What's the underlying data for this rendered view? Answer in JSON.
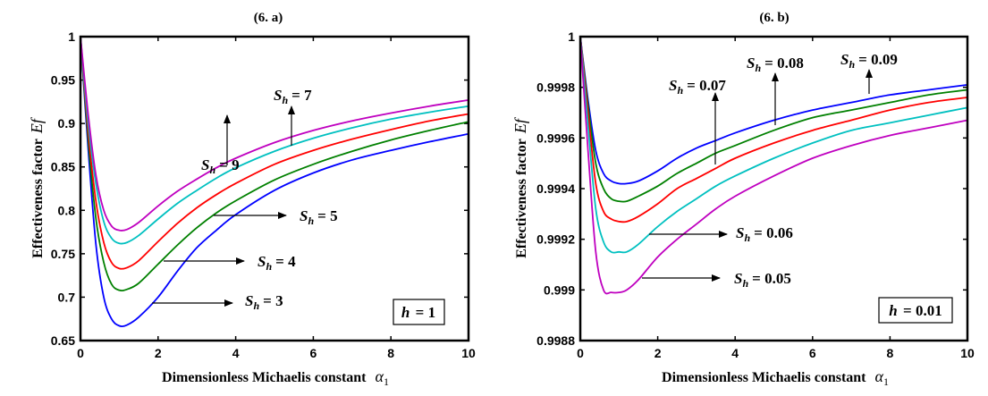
{
  "chart_data": [
    {
      "type": "line",
      "title": "(6. a)",
      "xlabel": "Dimensionless Michaelis constant",
      "xlabel_symbol": "α",
      "xlabel_symbol_sub": "1",
      "ylabel": "Effectiveness factor",
      "ylabel_symbol": "Ef",
      "xlim": [
        0,
        10
      ],
      "ylim": [
        0.65,
        1
      ],
      "xticks": [
        0,
        2,
        4,
        6,
        8,
        10
      ],
      "xtick_labels": [
        "0",
        "2",
        "4",
        "6",
        "8",
        "10"
      ],
      "yticks": [
        0.65,
        0.7,
        0.75,
        0.8,
        0.85,
        0.9,
        0.95,
        1
      ],
      "ytick_labels": [
        "0.65",
        "0.7",
        "0.75",
        "0.8",
        "0.85",
        "0.9",
        "0.95",
        "1"
      ],
      "grid": false,
      "parameter_box": {
        "symbol": "h",
        "value": "1"
      },
      "series": [
        {
          "name": "S_h = 3",
          "color": "#0000ff",
          "x": [
            0,
            0.2,
            0.4,
            0.6,
            0.8,
            1.0,
            1.2,
            1.5,
            2,
            2.5,
            3,
            3.5,
            4,
            5,
            6,
            7,
            8,
            9,
            10
          ],
          "y": [
            1,
            0.87,
            0.76,
            0.7,
            0.675,
            0.667,
            0.668,
            0.677,
            0.7,
            0.73,
            0.757,
            0.777,
            0.795,
            0.823,
            0.843,
            0.858,
            0.869,
            0.879,
            0.888
          ]
        },
        {
          "name": "S_h = 4",
          "color": "#008000",
          "x": [
            0,
            0.2,
            0.4,
            0.6,
            0.8,
            1.0,
            1.2,
            1.5,
            2,
            2.5,
            3,
            3.5,
            4,
            5,
            6,
            7,
            8,
            9,
            10
          ],
          "y": [
            1,
            0.88,
            0.79,
            0.74,
            0.715,
            0.708,
            0.709,
            0.716,
            0.738,
            0.76,
            0.78,
            0.797,
            0.811,
            0.835,
            0.853,
            0.868,
            0.881,
            0.892,
            0.902
          ]
        },
        {
          "name": "S_h = 5",
          "color": "#ff0000",
          "x": [
            0,
            0.2,
            0.4,
            0.6,
            0.8,
            1.0,
            1.2,
            1.5,
            2,
            2.5,
            3,
            3.5,
            4,
            5,
            6,
            7,
            8,
            9,
            10
          ],
          "y": [
            1,
            0.89,
            0.81,
            0.763,
            0.74,
            0.733,
            0.734,
            0.742,
            0.764,
            0.785,
            0.803,
            0.818,
            0.831,
            0.853,
            0.869,
            0.882,
            0.893,
            0.903,
            0.911
          ]
        },
        {
          "name": "S_h = 7",
          "color": "#00c0c0",
          "x": [
            0,
            0.2,
            0.4,
            0.6,
            0.8,
            1.0,
            1.2,
            1.5,
            2,
            2.5,
            3,
            3.5,
            4,
            5,
            6,
            7,
            8,
            9,
            10
          ],
          "y": [
            1,
            0.9,
            0.83,
            0.787,
            0.768,
            0.762,
            0.763,
            0.771,
            0.79,
            0.808,
            0.823,
            0.837,
            0.849,
            0.868,
            0.883,
            0.895,
            0.905,
            0.913,
            0.92
          ]
        },
        {
          "name": "S_h = 9",
          "color": "#bf00bf",
          "x": [
            0,
            0.2,
            0.4,
            0.6,
            0.8,
            1.0,
            1.2,
            1.5,
            2,
            2.5,
            3,
            3.5,
            4,
            5,
            6,
            7,
            8,
            9,
            10
          ],
          "y": [
            1,
            0.91,
            0.84,
            0.8,
            0.782,
            0.777,
            0.778,
            0.786,
            0.805,
            0.822,
            0.836,
            0.849,
            0.86,
            0.878,
            0.892,
            0.903,
            0.912,
            0.92,
            0.927
          ]
        }
      ],
      "annotations": [
        {
          "text_s": "S",
          "text_sub": "h",
          "text_value": "= 9",
          "arrow": "up",
          "target_series": "S_h = 9"
        },
        {
          "text_s": "S",
          "text_sub": "h",
          "text_value": "= 7",
          "arrow": "up",
          "target_series": "S_h = 7"
        },
        {
          "text_s": "S",
          "text_sub": "h",
          "text_value": "= 5",
          "arrow": "right",
          "target_series": "S_h = 5"
        },
        {
          "text_s": "S",
          "text_sub": "h",
          "text_value": "= 4",
          "arrow": "right",
          "target_series": "S_h = 4"
        },
        {
          "text_s": "S",
          "text_sub": "h",
          "text_value": "= 3",
          "arrow": "right",
          "target_series": "S_h = 3"
        }
      ]
    },
    {
      "type": "line",
      "title": "(6. b)",
      "xlabel": "Dimensionless Michaelis constant",
      "xlabel_symbol": "α",
      "xlabel_symbol_sub": "1",
      "ylabel": "Effectiveness factor",
      "ylabel_symbol": "Ef",
      "xlim": [
        0,
        10
      ],
      "ylim": [
        0.9988,
        1
      ],
      "xticks": [
        0,
        2,
        4,
        6,
        8,
        10
      ],
      "xtick_labels": [
        "0",
        "2",
        "4",
        "6",
        "8",
        "10"
      ],
      "yticks": [
        0.9988,
        0.999,
        0.9992,
        0.9994,
        0.9996,
        0.9998,
        1
      ],
      "ytick_labels": [
        "0.9988",
        "0.999",
        "0.9992",
        "0.9994",
        "0.9996",
        "0.9998",
        "1"
      ],
      "grid": false,
      "parameter_box": {
        "symbol": "h",
        "value": "0.01"
      },
      "series": [
        {
          "name": "S_h = 0.09",
          "color": "#0000ff",
          "x": [
            0,
            0.2,
            0.4,
            0.6,
            0.8,
            1.0,
            1.2,
            1.5,
            2,
            2.5,
            3,
            3.5,
            4,
            5,
            6,
            7,
            8,
            9,
            10
          ],
          "y": [
            1,
            0.99975,
            0.99955,
            0.99946,
            0.99943,
            0.99942,
            0.99942,
            0.99943,
            0.99947,
            0.99952,
            0.99956,
            0.99959,
            0.99962,
            0.99967,
            0.99971,
            0.99974,
            0.99977,
            0.99979,
            0.99981
          ]
        },
        {
          "name": "S_h = 0.08",
          "color": "#008000",
          "x": [
            0,
            0.2,
            0.4,
            0.6,
            0.8,
            1.0,
            1.2,
            1.5,
            2,
            2.5,
            3,
            3.5,
            4,
            5,
            6,
            7,
            8,
            9,
            10
          ],
          "y": [
            1,
            0.99973,
            0.9995,
            0.9994,
            0.99936,
            0.99935,
            0.99935,
            0.99937,
            0.99941,
            0.99946,
            0.9995,
            0.99954,
            0.99957,
            0.99963,
            0.99968,
            0.99971,
            0.99974,
            0.99977,
            0.99979
          ]
        },
        {
          "name": "S_h = 0.07",
          "color": "#ff0000",
          "x": [
            0,
            0.2,
            0.4,
            0.6,
            0.8,
            1.0,
            1.2,
            1.5,
            2,
            2.5,
            3,
            3.5,
            4,
            5,
            6,
            7,
            8,
            9,
            10
          ],
          "y": [
            1,
            0.9997,
            0.99942,
            0.99931,
            0.99928,
            0.99927,
            0.99927,
            0.99929,
            0.99934,
            0.9994,
            0.99944,
            0.99948,
            0.99952,
            0.99958,
            0.99963,
            0.99967,
            0.99971,
            0.99974,
            0.99976
          ]
        },
        {
          "name": "S_h = 0.06",
          "color": "#00c0c0",
          "x": [
            0,
            0.2,
            0.4,
            0.6,
            0.8,
            1.0,
            1.2,
            1.5,
            2,
            2.5,
            3,
            3.5,
            4,
            5,
            6,
            7,
            8,
            9,
            10
          ],
          "y": [
            1,
            0.99965,
            0.99932,
            0.99919,
            0.99915,
            0.99915,
            0.99915,
            0.99918,
            0.99925,
            0.99931,
            0.99936,
            0.99941,
            0.99945,
            0.99952,
            0.99958,
            0.99963,
            0.99966,
            0.99969,
            0.99972
          ]
        },
        {
          "name": "S_h = 0.05",
          "color": "#bf00bf",
          "x": [
            0,
            0.2,
            0.4,
            0.6,
            0.8,
            1.0,
            1.2,
            1.5,
            2,
            2.5,
            3,
            3.5,
            4,
            5,
            6,
            7,
            8,
            9,
            10
          ],
          "y": [
            1,
            0.99955,
            0.99915,
            0.999,
            0.99899,
            0.99899,
            0.999,
            0.99904,
            0.99913,
            0.9992,
            0.99926,
            0.99932,
            0.99937,
            0.99945,
            0.99952,
            0.99957,
            0.99961,
            0.99964,
            0.99967
          ]
        }
      ],
      "annotations": [
        {
          "text_s": "S",
          "text_sub": "h",
          "text_value": "= 0.07",
          "arrow": "up",
          "target_series": "S_h = 0.07"
        },
        {
          "text_s": "S",
          "text_sub": "h",
          "text_value": "= 0.08",
          "arrow": "up",
          "target_series": "S_h = 0.08"
        },
        {
          "text_s": "S",
          "text_sub": "h",
          "text_value": "= 0.09",
          "arrow": "up",
          "target_series": "S_h = 0.09"
        },
        {
          "text_s": "S",
          "text_sub": "h",
          "text_value": "= 0.06",
          "arrow": "right",
          "target_series": "S_h = 0.06"
        },
        {
          "text_s": "S",
          "text_sub": "h",
          "text_value": "= 0.05",
          "arrow": "right",
          "target_series": "S_h = 0.05"
        }
      ]
    }
  ]
}
